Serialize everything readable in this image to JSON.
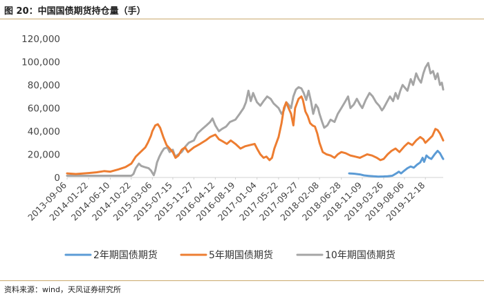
{
  "figure": {
    "title": "图 20：中国国债期货持仓量（手）",
    "source": "资料来源：wind，天风证券研究所"
  },
  "colors": {
    "s2y": "#5b9bd5",
    "s5y": "#ed7d31",
    "s10y": "#a5a5a5",
    "accent_rule": "#c9a86a"
  },
  "chart_data": {
    "type": "line",
    "title": "",
    "xlabel": "",
    "ylabel": "",
    "ylim": [
      0,
      120000
    ],
    "yticks": [
      0,
      20000,
      40000,
      60000,
      80000,
      100000,
      120000
    ],
    "ytick_labels": [
      "0",
      "20,000",
      "40,000",
      "60,000",
      "80,000",
      "100,000",
      "120,000"
    ],
    "xlim": [
      "2013-09-06",
      "2020-04-10"
    ],
    "xtick_labels": [
      "2013-09-06",
      "2014-01-22",
      "2014-06-10",
      "2014-10-22",
      "2015-03-06",
      "2015-07-15",
      "2015-11-27",
      "2016-04-12",
      "2016-08-19",
      "2017-01-04",
      "2017-05-22",
      "2017-09-27",
      "2018-02-08",
      "2018-06-28",
      "2018-11-09",
      "2019-03-26",
      "2019-08-06",
      "2019-12-18"
    ],
    "grid": false,
    "legend": "bottom",
    "series": [
      {
        "name": "2年期国债期货",
        "points": [
          [
            "2018-08-17",
            3500
          ],
          [
            "2018-09-20",
            3200
          ],
          [
            "2018-10-25",
            2600
          ],
          [
            "2018-11-20",
            1800
          ],
          [
            "2018-12-20",
            1400
          ],
          [
            "2019-01-20",
            1000
          ],
          [
            "2019-02-20",
            800
          ],
          [
            "2019-03-26",
            900
          ],
          [
            "2019-04-20",
            1100
          ],
          [
            "2019-05-20",
            1500
          ],
          [
            "2019-06-15",
            3500
          ],
          [
            "2019-07-01",
            5000
          ],
          [
            "2019-07-15",
            3500
          ],
          [
            "2019-08-06",
            6000
          ],
          [
            "2019-08-25",
            8000
          ],
          [
            "2019-09-15",
            9500
          ],
          [
            "2019-10-05",
            8500
          ],
          [
            "2019-10-25",
            11000
          ],
          [
            "2019-11-15",
            13000
          ],
          [
            "2019-11-30",
            17000
          ],
          [
            "2019-12-10",
            13500
          ],
          [
            "2019-12-25",
            19000
          ],
          [
            "2020-01-10",
            17000
          ],
          [
            "2020-01-25",
            16000
          ],
          [
            "2020-02-15",
            20000
          ],
          [
            "2020-03-05",
            23000
          ],
          [
            "2020-03-20",
            21000
          ],
          [
            "2020-04-05",
            17000
          ],
          [
            "2020-04-10",
            16000
          ]
        ]
      },
      {
        "name": "5年期国债期货",
        "points": [
          [
            "2013-09-06",
            3500
          ],
          [
            "2013-11-01",
            3000
          ],
          [
            "2014-01-22",
            3800
          ],
          [
            "2014-03-15",
            4500
          ],
          [
            "2014-05-01",
            5500
          ],
          [
            "2014-06-10",
            5000
          ],
          [
            "2014-08-01",
            7000
          ],
          [
            "2014-09-15",
            9000
          ],
          [
            "2014-10-22",
            12000
          ],
          [
            "2014-11-20",
            18000
          ],
          [
            "2014-12-20",
            22000
          ],
          [
            "2015-01-20",
            26000
          ],
          [
            "2015-02-05",
            30000
          ],
          [
            "2015-02-25",
            36000
          ],
          [
            "2015-03-06",
            40000
          ],
          [
            "2015-03-25",
            45000
          ],
          [
            "2015-04-10",
            46000
          ],
          [
            "2015-04-25",
            43000
          ],
          [
            "2015-05-15",
            35000
          ],
          [
            "2015-06-05",
            28000
          ],
          [
            "2015-06-25",
            25000
          ],
          [
            "2015-07-15",
            22000
          ],
          [
            "2015-08-01",
            17000
          ],
          [
            "2015-08-20",
            19000
          ],
          [
            "2015-09-10",
            24000
          ],
          [
            "2015-10-01",
            26000
          ],
          [
            "2015-10-20",
            22000
          ],
          [
            "2015-11-27",
            26000
          ],
          [
            "2016-01-05",
            29000
          ],
          [
            "2016-02-10",
            32000
          ],
          [
            "2016-03-10",
            35000
          ],
          [
            "2016-04-12",
            37000
          ],
          [
            "2016-05-05",
            33000
          ],
          [
            "2016-06-01",
            31000
          ],
          [
            "2016-06-25",
            29000
          ],
          [
            "2016-07-20",
            32000
          ],
          [
            "2016-08-19",
            29000
          ],
          [
            "2016-09-20",
            25000
          ],
          [
            "2016-10-20",
            27000
          ],
          [
            "2016-11-20",
            28000
          ],
          [
            "2016-12-20",
            29000
          ],
          [
            "2017-01-04",
            25000
          ],
          [
            "2017-01-25",
            20000
          ],
          [
            "2017-02-15",
            17000
          ],
          [
            "2017-03-05",
            18000
          ],
          [
            "2017-03-25",
            15000
          ],
          [
            "2017-04-10",
            17000
          ],
          [
            "2017-04-25",
            25000
          ],
          [
            "2017-05-22",
            35000
          ],
          [
            "2017-06-10",
            47000
          ],
          [
            "2017-06-25",
            60000
          ],
          [
            "2017-07-10",
            65000
          ],
          [
            "2017-07-25",
            60000
          ],
          [
            "2017-08-10",
            55000
          ],
          [
            "2017-08-25",
            45000
          ],
          [
            "2017-09-05",
            60000
          ],
          [
            "2017-09-27",
            68000
          ],
          [
            "2017-10-15",
            70000
          ],
          [
            "2017-10-25",
            67000
          ],
          [
            "2017-11-10",
            57000
          ],
          [
            "2017-11-25",
            53000
          ],
          [
            "2017-12-10",
            47000
          ],
          [
            "2017-12-25",
            45000
          ],
          [
            "2018-01-10",
            44000
          ],
          [
            "2018-01-25",
            38000
          ],
          [
            "2018-02-08",
            30000
          ],
          [
            "2018-03-01",
            22000
          ],
          [
            "2018-03-25",
            20000
          ],
          [
            "2018-04-20",
            19000
          ],
          [
            "2018-05-15",
            17000
          ],
          [
            "2018-06-05",
            20000
          ],
          [
            "2018-06-28",
            22000
          ],
          [
            "2018-07-25",
            21000
          ],
          [
            "2018-08-25",
            19000
          ],
          [
            "2018-09-25",
            18000
          ],
          [
            "2018-10-25",
            17000
          ],
          [
            "2018-11-09",
            18000
          ],
          [
            "2018-12-10",
            20000
          ],
          [
            "2019-01-10",
            19000
          ],
          [
            "2019-02-10",
            17000
          ],
          [
            "2019-03-05",
            15000
          ],
          [
            "2019-03-26",
            16000
          ],
          [
            "2019-04-20",
            20000
          ],
          [
            "2019-05-15",
            23000
          ],
          [
            "2019-06-10",
            25000
          ],
          [
            "2019-07-05",
            22000
          ],
          [
            "2019-08-06",
            27000
          ],
          [
            "2019-08-30",
            30000
          ],
          [
            "2019-09-25",
            28000
          ],
          [
            "2019-10-20",
            32000
          ],
          [
            "2019-11-15",
            35000
          ],
          [
            "2019-12-05",
            33000
          ],
          [
            "2019-12-18",
            30000
          ],
          [
            "2020-01-10",
            33000
          ],
          [
            "2020-02-01",
            36000
          ],
          [
            "2020-02-20",
            42000
          ],
          [
            "2020-03-05",
            41000
          ],
          [
            "2020-03-20",
            38000
          ],
          [
            "2020-04-10",
            32000
          ]
        ]
      },
      {
        "name": "10年期国债期货",
        "points": [
          [
            "2013-09-06",
            1500
          ],
          [
            "2014-01-22",
            1500
          ],
          [
            "2014-06-10",
            1500
          ],
          [
            "2014-10-22",
            1500
          ],
          [
            "2014-11-05",
            3000
          ],
          [
            "2014-11-20",
            8000
          ],
          [
            "2014-12-10",
            12000
          ],
          [
            "2014-12-25",
            10000
          ],
          [
            "2015-01-15",
            9000
          ],
          [
            "2015-02-10",
            8000
          ],
          [
            "2015-02-25",
            6000
          ],
          [
            "2015-03-06",
            4000
          ],
          [
            "2015-03-15",
            2000
          ],
          [
            "2015-03-25",
            6000
          ],
          [
            "2015-04-05",
            13000
          ],
          [
            "2015-04-20",
            18000
          ],
          [
            "2015-05-05",
            22000
          ],
          [
            "2015-05-20",
            25000
          ],
          [
            "2015-06-10",
            26000
          ],
          [
            "2015-06-25",
            22000
          ],
          [
            "2015-07-15",
            24000
          ],
          [
            "2015-07-30",
            18000
          ],
          [
            "2015-08-20",
            20000
          ],
          [
            "2015-09-10",
            22000
          ],
          [
            "2015-10-05",
            27000
          ],
          [
            "2015-10-25",
            30000
          ],
          [
            "2015-11-27",
            32000
          ],
          [
            "2015-12-20",
            38000
          ],
          [
            "2016-01-20",
            42000
          ],
          [
            "2016-02-15",
            45000
          ],
          [
            "2016-03-10",
            48000
          ],
          [
            "2016-03-25",
            51000
          ],
          [
            "2016-04-12",
            45000
          ],
          [
            "2016-05-05",
            40000
          ],
          [
            "2016-05-25",
            42000
          ],
          [
            "2016-06-20",
            44000
          ],
          [
            "2016-07-15",
            48000
          ],
          [
            "2016-08-19",
            50000
          ],
          [
            "2016-09-15",
            55000
          ],
          [
            "2016-10-10",
            60000
          ],
          [
            "2016-10-25",
            65000
          ],
          [
            "2016-11-10",
            75000
          ],
          [
            "2016-11-25",
            66000
          ],
          [
            "2016-12-10",
            73000
          ],
          [
            "2016-12-25",
            68000
          ],
          [
            "2017-01-04",
            65000
          ],
          [
            "2017-01-25",
            62000
          ],
          [
            "2017-02-15",
            66000
          ],
          [
            "2017-03-10",
            70000
          ],
          [
            "2017-04-01",
            68000
          ],
          [
            "2017-04-20",
            64000
          ],
          [
            "2017-05-22",
            60000
          ],
          [
            "2017-06-10",
            55000
          ],
          [
            "2017-06-25",
            58000
          ],
          [
            "2017-07-10",
            65000
          ],
          [
            "2017-07-25",
            63000
          ],
          [
            "2017-08-10",
            60000
          ],
          [
            "2017-08-25",
            70000
          ],
          [
            "2017-09-10",
            76000
          ],
          [
            "2017-09-27",
            78000
          ],
          [
            "2017-10-15",
            77000
          ],
          [
            "2017-10-30",
            73000
          ],
          [
            "2017-11-15",
            67000
          ],
          [
            "2017-11-30",
            75000
          ],
          [
            "2017-12-15",
            66000
          ],
          [
            "2017-12-30",
            55000
          ],
          [
            "2018-01-15",
            63000
          ],
          [
            "2018-01-30",
            60000
          ],
          [
            "2018-02-08",
            55000
          ],
          [
            "2018-02-25",
            48000
          ],
          [
            "2018-03-10",
            43000
          ],
          [
            "2018-03-30",
            45000
          ],
          [
            "2018-04-20",
            50000
          ],
          [
            "2018-05-15",
            48000
          ],
          [
            "2018-06-05",
            55000
          ],
          [
            "2018-06-28",
            60000
          ],
          [
            "2018-07-20",
            65000
          ],
          [
            "2018-08-10",
            70000
          ],
          [
            "2018-08-25",
            60000
          ],
          [
            "2018-09-15",
            63000
          ],
          [
            "2018-10-05",
            68000
          ],
          [
            "2018-10-25",
            63000
          ],
          [
            "2018-11-09",
            60000
          ],
          [
            "2018-12-01",
            67000
          ],
          [
            "2018-12-25",
            73000
          ],
          [
            "2019-01-15",
            70000
          ],
          [
            "2019-02-05",
            65000
          ],
          [
            "2019-02-25",
            62000
          ],
          [
            "2019-03-15",
            58000
          ],
          [
            "2019-03-26",
            60000
          ],
          [
            "2019-04-15",
            65000
          ],
          [
            "2019-05-05",
            70000
          ],
          [
            "2019-05-25",
            66000
          ],
          [
            "2019-06-10",
            73000
          ],
          [
            "2019-06-25",
            68000
          ],
          [
            "2019-07-10",
            75000
          ],
          [
            "2019-07-25",
            80000
          ],
          [
            "2019-08-06",
            78000
          ],
          [
            "2019-08-25",
            75000
          ],
          [
            "2019-09-15",
            85000
          ],
          [
            "2019-10-01",
            80000
          ],
          [
            "2019-10-20",
            90000
          ],
          [
            "2019-11-05",
            85000
          ],
          [
            "2019-11-20",
            82000
          ],
          [
            "2019-12-05",
            90000
          ],
          [
            "2019-12-18",
            95000
          ],
          [
            "2020-01-05",
            99000
          ],
          [
            "2020-01-20",
            90000
          ],
          [
            "2020-02-05",
            92000
          ],
          [
            "2020-02-20",
            85000
          ],
          [
            "2020-03-05",
            90000
          ],
          [
            "2020-03-20",
            80000
          ],
          [
            "2020-04-01",
            82000
          ],
          [
            "2020-04-10",
            76000
          ]
        ]
      }
    ]
  }
}
